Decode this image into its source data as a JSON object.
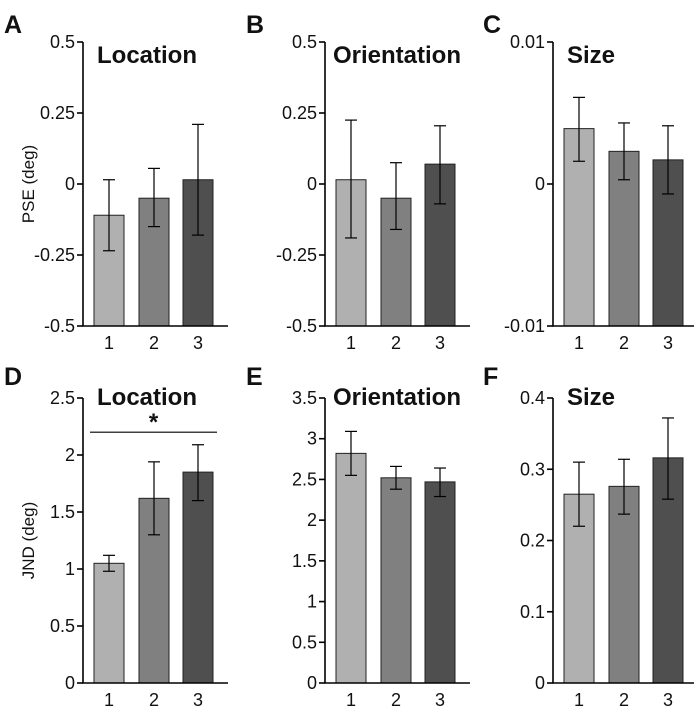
{
  "chart_data": [
    {
      "panel": "A",
      "type": "bar",
      "title": "Location",
      "ylabel": "PSE (deg)",
      "categories": [
        "1",
        "2",
        "3"
      ],
      "values": [
        -0.11,
        -0.05,
        0.015
      ],
      "errors": [
        [
          -0.235,
          0.015
        ],
        [
          -0.15,
          0.055
        ],
        [
          -0.18,
          0.21
        ]
      ],
      "ylim": [
        -0.5,
        0.5
      ],
      "yticks": [
        "0.5",
        "0.25",
        "0",
        "-0.25",
        "-0.5"
      ],
      "ytick_values": [
        0.5,
        0.25,
        0,
        -0.25,
        -0.5
      ],
      "colors": [
        "#b0b0b0",
        "#808080",
        "#4f4f4f"
      ]
    },
    {
      "panel": "B",
      "type": "bar",
      "title": "Orientation",
      "ylabel": "",
      "categories": [
        "1",
        "2",
        "3"
      ],
      "values": [
        0.015,
        -0.05,
        0.07
      ],
      "errors": [
        [
          -0.19,
          0.225
        ],
        [
          -0.16,
          0.075
        ],
        [
          -0.07,
          0.205
        ]
      ],
      "ylim": [
        -0.5,
        0.5
      ],
      "yticks": [
        "0.5",
        "0.25",
        "0",
        "-0.25",
        "-0.5"
      ],
      "ytick_values": [
        0.5,
        0.25,
        0,
        -0.25,
        -0.5
      ],
      "colors": [
        "#b0b0b0",
        "#808080",
        "#4f4f4f"
      ]
    },
    {
      "panel": "C",
      "type": "bar",
      "title": "Size",
      "ylabel": "",
      "categories": [
        "1",
        "2",
        "3"
      ],
      "values": [
        0.0039,
        0.0023,
        0.0017
      ],
      "errors": [
        [
          0.0016,
          0.0061
        ],
        [
          0.0003,
          0.0043
        ],
        [
          -0.0007,
          0.0041
        ]
      ],
      "ylim": [
        -0.01,
        0.01
      ],
      "yticks": [
        "0.01",
        "0",
        "-0.01"
      ],
      "ytick_values": [
        0.01,
        0,
        -0.01
      ],
      "colors": [
        "#b0b0b0",
        "#808080",
        "#4f4f4f"
      ]
    },
    {
      "panel": "D",
      "type": "bar",
      "title": "Location",
      "ylabel": "JND (deg)",
      "categories": [
        "1",
        "2",
        "3"
      ],
      "values": [
        1.05,
        1.62,
        1.85
      ],
      "errors": [
        [
          0.98,
          1.12
        ],
        [
          1.3,
          1.94
        ],
        [
          1.6,
          2.09
        ]
      ],
      "ylim": [
        0,
        2.5
      ],
      "yticks": [
        "2.5",
        "2",
        "1.5",
        "1",
        "0.5",
        "0"
      ],
      "ytick_values": [
        2.5,
        2,
        1.5,
        1,
        0.5,
        0
      ],
      "colors": [
        "#b0b0b0",
        "#808080",
        "#4f4f4f"
      ],
      "significance": {
        "from": "1",
        "to": "3",
        "level": 2.2,
        "label": "*"
      }
    },
    {
      "panel": "E",
      "type": "bar",
      "title": "Orientation",
      "ylabel": "",
      "categories": [
        "1",
        "2",
        "3"
      ],
      "values": [
        2.82,
        2.52,
        2.47
      ],
      "errors": [
        [
          2.55,
          3.09
        ],
        [
          2.38,
          2.66
        ],
        [
          2.29,
          2.64
        ]
      ],
      "ylim": [
        0,
        3.5
      ],
      "yticks": [
        "3.5",
        "3",
        "2.5",
        "2",
        "1.5",
        "1",
        "0.5",
        "0"
      ],
      "ytick_values": [
        3.5,
        3,
        2.5,
        2,
        1.5,
        1,
        0.5,
        0
      ],
      "colors": [
        "#b0b0b0",
        "#808080",
        "#4f4f4f"
      ]
    },
    {
      "panel": "F",
      "type": "bar",
      "title": "Size",
      "ylabel": "",
      "categories": [
        "1",
        "2",
        "3"
      ],
      "values": [
        0.265,
        0.276,
        0.316
      ],
      "errors": [
        [
          0.22,
          0.31
        ],
        [
          0.237,
          0.314
        ],
        [
          0.258,
          0.372
        ]
      ],
      "ylim": [
        0,
        0.4
      ],
      "yticks": [
        "0.4",
        "0.3",
        "0.2",
        "0.1",
        "0"
      ],
      "ytick_values": [
        0.4,
        0.3,
        0.2,
        0.1,
        0
      ],
      "colors": [
        "#b0b0b0",
        "#808080",
        "#4f4f4f"
      ]
    }
  ]
}
